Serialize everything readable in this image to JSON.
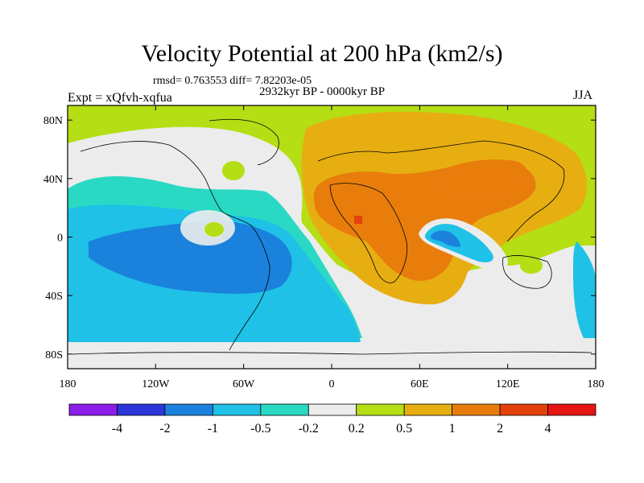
{
  "title": "Velocity Potential at 200 hPa (km2/s)",
  "stats": "rmsd= 0.763553 diff= 7.82203e-05",
  "expt_label": "Expt = xQfvh-xqfua",
  "period_label": "2932kyr BP - 0000kyr BP",
  "season_label": "JJA",
  "lat_ticks": [
    "80N",
    "40N",
    "0",
    "40S",
    "80S"
  ],
  "lat_values": [
    80,
    40,
    0,
    -40,
    -80
  ],
  "lon_ticks": [
    "180",
    "120W",
    "60W",
    "0",
    "60E",
    "120E",
    "180"
  ],
  "lon_values": [
    -180,
    -120,
    -60,
    0,
    60,
    120,
    180
  ],
  "colorbar": {
    "labels": [
      "-4",
      "-2",
      "-1",
      "-0.5",
      "-0.2",
      "0.2",
      "0.5",
      "1",
      "2",
      "4"
    ],
    "colors": [
      "#8a1ee8",
      "#2b35d8",
      "#1a82dc",
      "#1fc1e6",
      "#2ad9c3",
      "#ececec",
      "#b5de14",
      "#e7ae12",
      "#e87d0c",
      "#e3420c",
      "#e61414"
    ]
  },
  "colors": {
    "land_outline": "#000000",
    "frame": "#000000"
  }
}
